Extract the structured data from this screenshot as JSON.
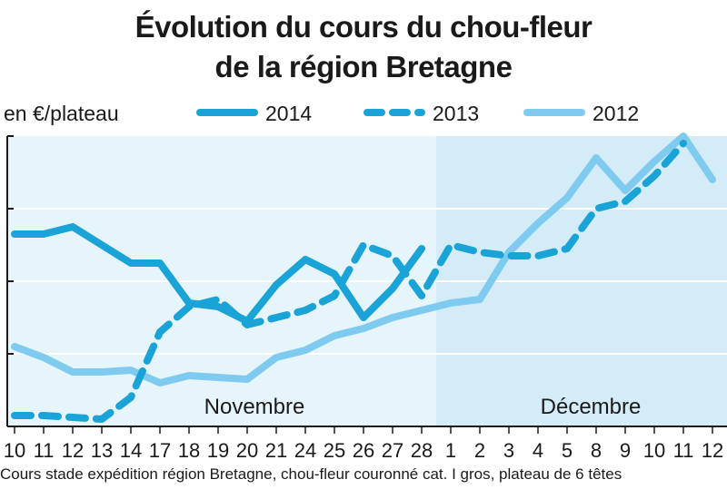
{
  "chart_data": {
    "type": "line",
    "title": "Évolution du cours du chou-fleur",
    "title_line2": "de la région Bretagne",
    "ylabel": "en €/plateau",
    "x": [
      "10",
      "11",
      "12",
      "13",
      "14",
      "17",
      "18",
      "19",
      "20",
      "21",
      "24",
      "25",
      "26",
      "27",
      "28",
      "1",
      "2",
      "3",
      "4",
      "5",
      "8",
      "9",
      "10",
      "11",
      "12"
    ],
    "ylim": [
      0,
      8
    ],
    "y_gridlines": [
      2,
      4,
      6
    ],
    "months": [
      {
        "label": "Novembre",
        "start_index": 0,
        "end_index": 14,
        "color": "#e6f4fb"
      },
      {
        "label": "Décembre",
        "start_index": 15,
        "end_index": 24,
        "color": "#d4ecf8"
      }
    ],
    "series": [
      {
        "name": "2014",
        "style": "solid",
        "color": "#1aa3d6",
        "values": [
          5.3,
          5.3,
          5.5,
          5.0,
          4.5,
          4.5,
          3.4,
          3.3,
          2.9,
          3.9,
          4.6,
          4.2,
          3.0,
          3.8,
          4.9,
          null,
          null,
          null,
          null,
          null,
          null,
          null,
          null,
          null,
          null
        ]
      },
      {
        "name": "2013",
        "style": "dashed",
        "color": "#1aa3d6",
        "values": [
          0.3,
          0.3,
          0.25,
          0.2,
          0.8,
          2.6,
          3.3,
          3.5,
          2.8,
          3.0,
          3.2,
          3.6,
          5.0,
          4.7,
          3.6,
          5.0,
          4.8,
          4.7,
          4.7,
          4.9,
          6.0,
          6.2,
          6.9,
          7.8,
          null
        ]
      },
      {
        "name": "2012",
        "style": "solid-light",
        "color": "#7fcbef",
        "values": [
          2.2,
          1.9,
          1.5,
          1.5,
          1.55,
          1.2,
          1.4,
          1.35,
          1.3,
          1.9,
          2.1,
          2.5,
          2.7,
          3.0,
          3.2,
          3.4,
          3.5,
          4.8,
          5.6,
          6.3,
          7.4,
          6.5,
          7.3,
          8.0,
          6.8
        ]
      }
    ],
    "footnote": "Cours stade expédition région Bretagne, chou-fleur couronné cat. I gros, plateau de 6 têtes",
    "grid": true,
    "legend_position": "top"
  }
}
